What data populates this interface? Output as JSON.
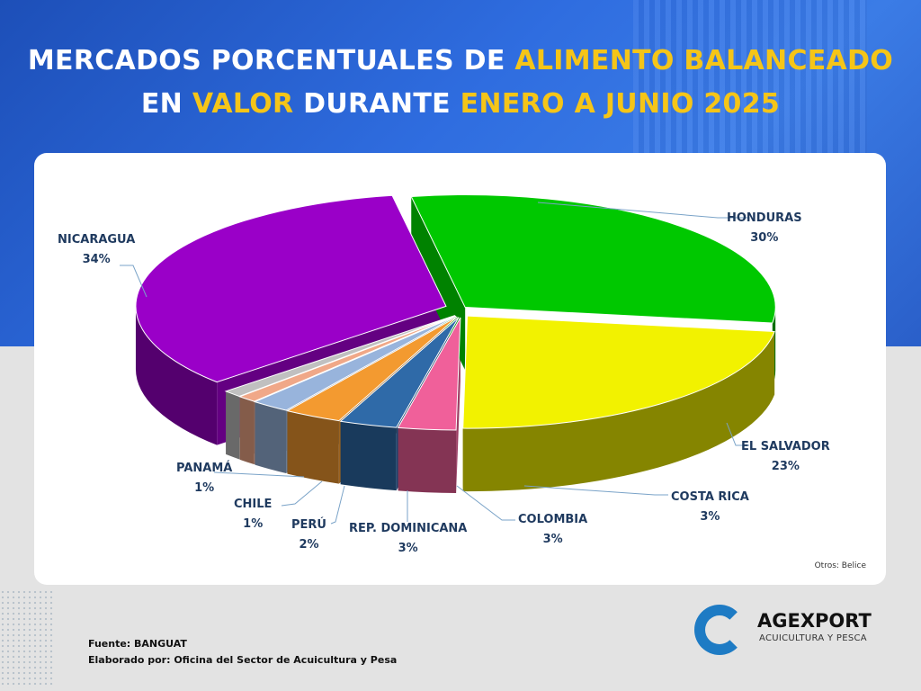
{
  "title": {
    "p1": "MERCADOS PORCENTUALES DE ",
    "p2": "ALIMENTO BALANCEADO",
    "p3": "EN ",
    "p4": "VALOR",
    "p5": " DURANTE ",
    "p6": "ENERO A JUNIO 2025"
  },
  "chart_data": {
    "type": "pie",
    "title": "MERCADOS PORCENTUALES DE ALIMENTO BALANCEADO EN VALOR DURANTE ENERO A JUNIO 2025",
    "slices": [
      {
        "label": "HONDURAS",
        "value": 30,
        "pct": "30%",
        "color": "#00c800"
      },
      {
        "label": "EL SALVADOR",
        "value": 23,
        "pct": "23%",
        "color": "#f2f200"
      },
      {
        "label": "COSTA RICA",
        "value": 3,
        "pct": "3%",
        "color": "#f0609a"
      },
      {
        "label": "COLOMBIA",
        "value": 3,
        "pct": "3%",
        "color": "#2f6aa8"
      },
      {
        "label": "REP. DOMINICANA",
        "value": 3,
        "pct": "3%",
        "color": "#f39a30"
      },
      {
        "label": "PERÚ",
        "value": 2,
        "pct": "2%",
        "color": "#98b4dc"
      },
      {
        "label": "CHILE",
        "value": 1,
        "pct": "1%",
        "color": "#f0a888"
      },
      {
        "label": "PANAMÁ",
        "value": 1,
        "pct": "1%",
        "color": "#c0c0c0"
      },
      {
        "label": "NICARAGUA",
        "value": 34,
        "pct": "34%",
        "color": "#9a00c8"
      }
    ],
    "note": "Otros:  Belice"
  },
  "footer": {
    "source": "Fuente:  BANGUAT",
    "prepared": "Elaborado por:  Oficina del Sector de Acuicultura y Pesa"
  },
  "logo": {
    "name": "AGEXPORT",
    "sub": "ACUICULTURA Y PESCA"
  }
}
